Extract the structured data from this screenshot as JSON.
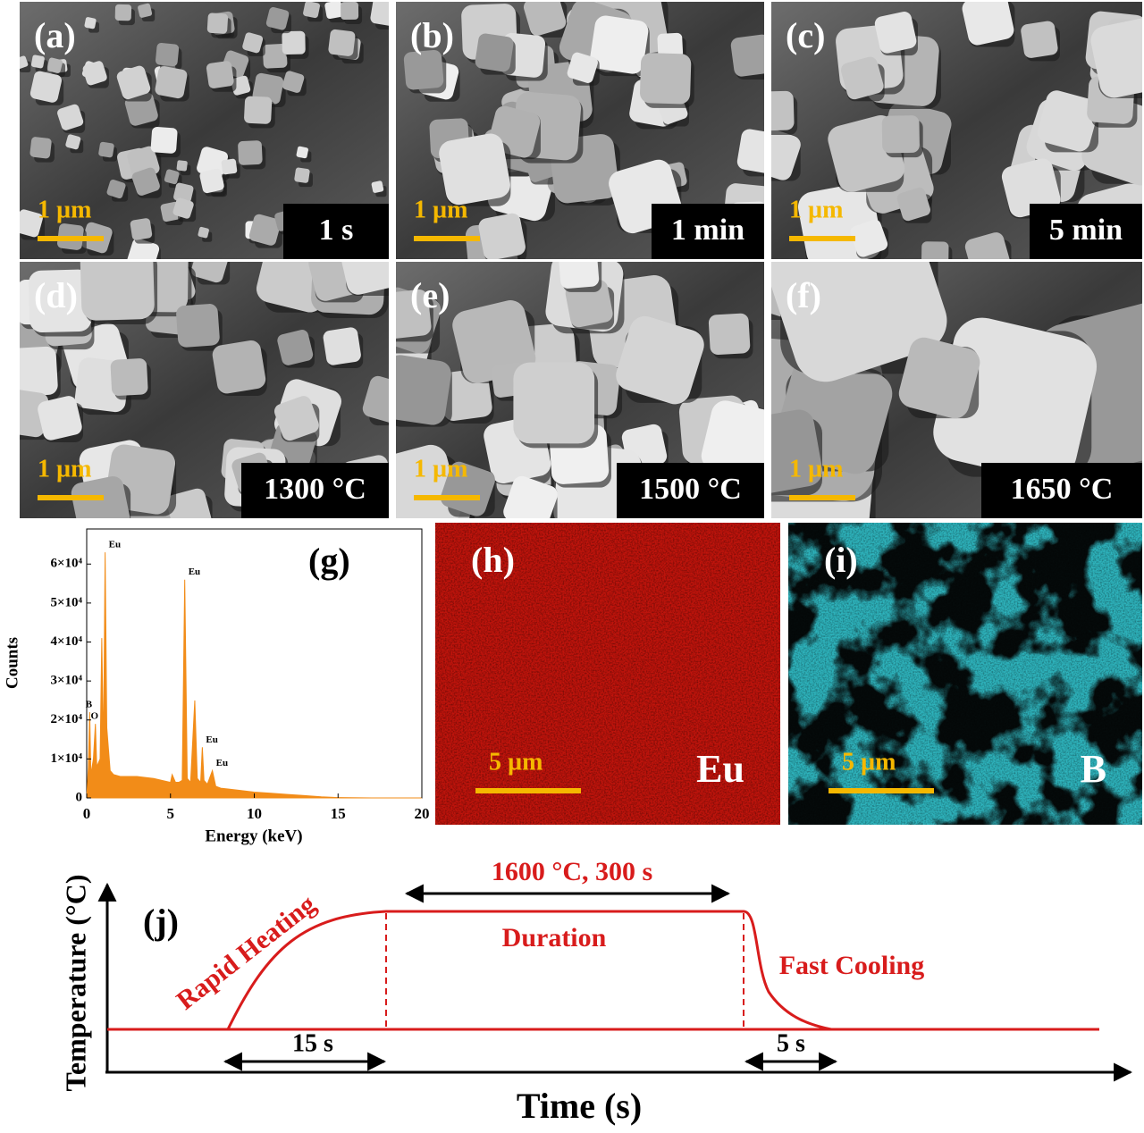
{
  "sem_panels": [
    {
      "label": "(a)",
      "condition": "1 s",
      "scale": "1 µm"
    },
    {
      "label": "(b)",
      "condition": "1 min",
      "scale": "1 µm"
    },
    {
      "label": "(c)",
      "condition": "5 min",
      "scale": "1 µm"
    },
    {
      "label": "(d)",
      "condition": "1300 °C",
      "scale": "1 µm"
    },
    {
      "label": "(e)",
      "condition": "1500 °C",
      "scale": "1 µm"
    },
    {
      "label": "(f)",
      "condition": "1650 °C",
      "scale": "1 µm"
    }
  ],
  "eds_spectrum": {
    "type": "area",
    "label": "(g)",
    "x_label": "Energy (keV)",
    "y_label": "Counts",
    "color": "#f28c18",
    "xlim": [
      0,
      20
    ],
    "ylim": [
      0,
      69000
    ],
    "xticks": [
      0,
      5,
      10,
      15,
      20
    ],
    "yticks": [
      0,
      {
        "value": 10000,
        "label": "1×10⁴"
      },
      {
        "value": 20000,
        "label": "2×10⁴"
      },
      {
        "value": 30000,
        "label": "3×10⁴"
      },
      {
        "value": 40000,
        "label": "4×10⁴"
      },
      {
        "value": 50000,
        "label": "5×10⁴"
      },
      {
        "value": 60000,
        "label": "6×10⁴"
      }
    ],
    "x": [
      0,
      0.1,
      0.18,
      0.25,
      0.4,
      0.52,
      0.6,
      0.8,
      0.9,
      1.0,
      1.1,
      1.2,
      1.4,
      1.6,
      2,
      3,
      4,
      5,
      5.1,
      5.3,
      5.5,
      5.7,
      5.85,
      6.0,
      6.2,
      6.45,
      6.6,
      6.8,
      6.9,
      7.0,
      7.2,
      7.5,
      7.7,
      8,
      9,
      10,
      11,
      12,
      13,
      14,
      15,
      17,
      20
    ],
    "values": [
      0,
      8000,
      22000,
      6000,
      10000,
      19000,
      8000,
      10000,
      41000,
      12000,
      63000,
      18000,
      7000,
      6000,
      5500,
      5500,
      5000,
      4000,
      6000,
      4000,
      4000,
      4500,
      56000,
      5000,
      4000,
      25000,
      5000,
      4000,
      13000,
      4500,
      3500,
      7000,
      3000,
      2500,
      2000,
      1500,
      1200,
      900,
      600,
      300,
      100,
      0,
      0
    ],
    "peaks": [
      {
        "name": "B",
        "energy": 0.18,
        "counts": 22000
      },
      {
        "name": "O",
        "energy": 0.52,
        "counts": 19000
      },
      {
        "name": "Eu",
        "energy": 1.1,
        "counts": 63000
      },
      {
        "name": "Eu",
        "energy": 5.85,
        "counts": 56000
      },
      {
        "name": "Eu",
        "energy": 6.9,
        "counts": 13000
      },
      {
        "name": "Eu",
        "energy": 7.5,
        "counts": 7000
      }
    ]
  },
  "maps": [
    {
      "label": "(h)",
      "element": "Eu",
      "scale": "5 µm",
      "color": "#c0140c"
    },
    {
      "label": "(i)",
      "element": "B",
      "scale": "5 µm",
      "color": "#2fb3bc"
    }
  ],
  "schematic": {
    "label": "(j)",
    "y_label": "Temperature (°C)",
    "x_label": "Time (s)",
    "stage_heating": "Rapid Heating",
    "stage_duration": "Duration",
    "stage_cooling": "Fast Cooling",
    "hold": "1600 °C, 300 s",
    "heating_time": "15 s",
    "cooling_time": "5 s"
  }
}
